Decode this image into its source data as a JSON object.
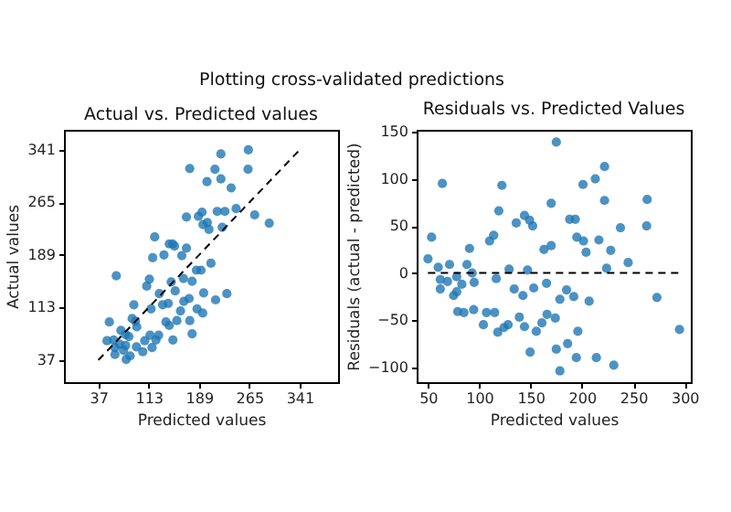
{
  "chart_data": [
    {
      "type": "scatter",
      "title": "Actual vs. Predicted values",
      "annotations": [
        "Plotting cross-validated predictions"
      ],
      "xlabel": "Predicted values",
      "ylabel": "Actual values",
      "xlim": [
        -15,
        399
      ],
      "ylim": [
        5,
        370
      ],
      "xticks": [
        37,
        113,
        189,
        265,
        341
      ],
      "yticks": [
        37,
        113,
        189,
        265,
        341
      ],
      "grid": false,
      "series": [
        {
          "type": "scatter",
          "marker": "circle",
          "color": "#1f77b4",
          "x": [
            50,
            53.5,
            60,
            64,
            62,
            62,
            69,
            71,
            75,
            78,
            78,
            83,
            79,
            85,
            88,
            90.5,
            93,
            95,
            94.5,
            104,
            107,
            110,
            114,
            115,
            116.5,
            118,
            119,
            122,
            124,
            128,
            129,
            136,
            134,
            139,
            142.5,
            144,
            144,
            149,
            147,
            152,
            153,
            155.5,
            149.5,
            161,
            163,
            165.5,
            166,
            170,
            170,
            174,
            175,
            178.5,
            178.5,
            185,
            186,
            188,
            193.5,
            195,
            192,
            194.5,
            196,
            201,
            201.5,
            204,
            207,
            213,
            216.5,
            214,
            222,
            224,
            228,
            231,
            237.5,
            245,
            263,
            263.5,
            273,
            295,
            175,
            222
          ],
          "values": [
            65,
            92,
            66,
            159,
            55,
            45,
            60,
            80,
            51,
            58,
            74,
            71,
            38,
            43,
            97,
            117,
            93,
            85,
            56,
            49,
            65,
            144,
            154,
            73,
            111,
            55,
            185,
            215,
            66,
            73,
            133,
            189,
            117,
            92,
            119,
            205,
            87,
            205,
            150,
            202,
            137,
            94,
            66,
            108,
            188,
            155,
            122,
            199,
            244,
            126,
            94,
            151,
            75,
            167,
            111,
            245,
            251,
            233,
            167,
            105,
            134,
            295,
            236,
            226,
            177,
            313,
            252,
            124,
            299,
            229,
            252,
            133,
            286,
            256,
            313,
            341,
            247,
            235,
            314,
            335
          ]
        },
        {
          "type": "line",
          "color": "#000000",
          "line_style": "dashed",
          "x": [
            37,
            341
          ],
          "values": [
            37,
            341
          ]
        }
      ]
    },
    {
      "type": "scatter",
      "title": "Residuals vs. Predicted Values",
      "xlabel": "Predicted values",
      "ylabel": "Residuals (actual - predicted)",
      "xlim": [
        39,
        306
      ],
      "ylim": [
        -116,
        152
      ],
      "xticks": [
        50,
        100,
        150,
        200,
        250,
        300
      ],
      "yticks": [
        -100,
        -50,
        0,
        50,
        100,
        150
      ],
      "grid": false,
      "series": [
        {
          "type": "scatter",
          "marker": "circle",
          "color": "#1f77b4",
          "x": [
            50,
            53.5,
            60,
            64,
            62,
            62,
            69,
            71,
            75,
            78,
            78,
            83,
            79,
            85,
            88,
            90.5,
            93,
            95,
            94.5,
            104,
            107,
            110,
            114,
            115,
            116.5,
            118,
            119,
            122,
            124,
            128,
            129,
            136,
            134,
            139,
            142.5,
            144,
            144,
            149,
            147,
            152,
            153,
            155.5,
            149.5,
            161,
            163,
            165.5,
            166,
            170,
            170,
            174,
            175,
            178.5,
            178.5,
            185,
            186,
            188,
            193.5,
            195,
            192,
            194.5,
            196,
            201,
            201.5,
            204,
            207,
            213,
            216.5,
            214,
            222,
            224,
            228,
            231,
            237.5,
            245,
            263,
            263.5,
            273,
            295,
            175,
            222
          ],
          "values": [
            15,
            38,
            6,
            95,
            -7,
            -17,
            -9,
            9,
            -24,
            -20,
            -4,
            -12,
            -41,
            -42,
            9,
            26,
            0,
            -10,
            -39,
            -55,
            -42,
            34,
            40,
            -42,
            -6,
            -63,
            66,
            93,
            -58,
            -55,
            4,
            53,
            -17,
            -47,
            -24,
            61,
            -57,
            56,
            3,
            50,
            -16,
            -62,
            -84,
            -53,
            25,
            -11,
            -44,
            29,
            74,
            -48,
            -81,
            -28,
            -104,
            -18,
            -75,
            57,
            57,
            38,
            -25,
            -90,
            -62,
            94,
            34,
            22,
            -30,
            100,
            35,
            -90,
            77,
            5,
            24,
            -98,
            48,
            11,
            50,
            78,
            -26,
            -60,
            139,
            113
          ]
        },
        {
          "type": "line",
          "color": "#000000",
          "line_style": "dashed",
          "x": [
            50,
            295
          ],
          "values": [
            0,
            0
          ]
        }
      ]
    }
  ]
}
